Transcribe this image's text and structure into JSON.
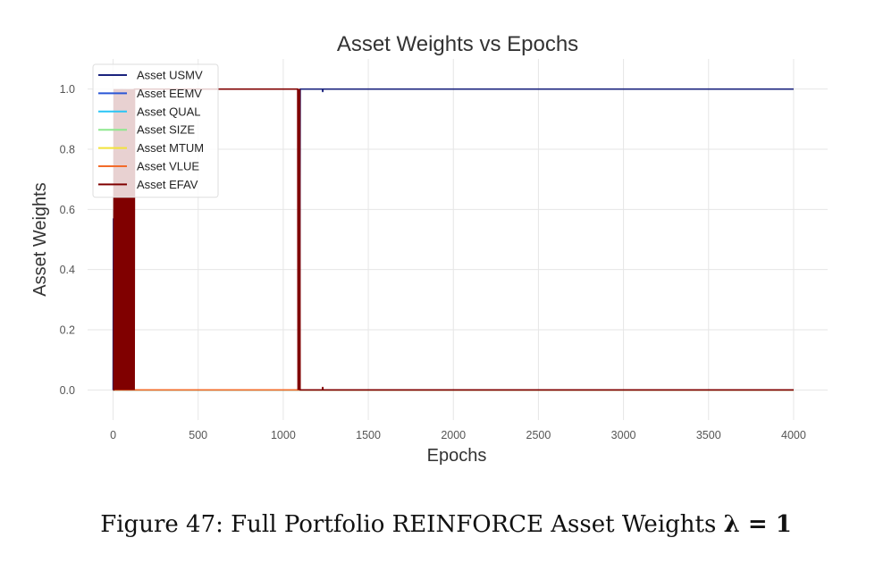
{
  "caption": {
    "prefix": "Figure 47:",
    "text": "Full Portfolio REINFORCE Asset Weights",
    "equation": "λ = 1"
  },
  "chart_data": {
    "type": "line",
    "title": "Asset Weights vs Epochs",
    "xlabel": "Epochs",
    "ylabel": "Asset Weights",
    "xlim": [
      -150,
      4200
    ],
    "ylim": [
      -0.1,
      1.1
    ],
    "x_ticks": [
      0,
      500,
      1000,
      1500,
      2000,
      2500,
      3000,
      3500,
      4000
    ],
    "x_tick_labels": [
      "0",
      "500",
      "1000",
      "1500",
      "2000",
      "2500",
      "3000",
      "3500",
      "4000"
    ],
    "y_ticks": [
      0.0,
      0.2,
      0.4,
      0.6,
      0.8,
      1.0
    ],
    "y_tick_labels": [
      "0.0",
      "0.2",
      "0.4",
      "0.6",
      "0.8",
      "1.0"
    ],
    "grid": true,
    "legend_position": "top-left",
    "series": [
      {
        "name": "Asset USMV",
        "color": "#1a237e",
        "x": [
          0,
          2,
          4,
          6,
          8,
          10,
          12,
          14,
          20,
          26,
          30,
          40,
          60,
          80,
          100,
          120,
          1085,
          1090,
          1093,
          1096,
          1100,
          1230,
          1232,
          1234,
          1240,
          4000
        ],
        "y": [
          0.0,
          0.57,
          0.27,
          0.6,
          0.15,
          0.0,
          0.3,
          0.0,
          0.0,
          0.0,
          0.0,
          0.0,
          0.0,
          0.0,
          0.0,
          0.0,
          0.0,
          0.0,
          1.0,
          0.0,
          1.0,
          1.0,
          0.99,
          1.0,
          1.0,
          1.0
        ]
      },
      {
        "name": "Asset EEMV",
        "color": "#2a56d6",
        "x": [
          0,
          38,
          40,
          42,
          44,
          46,
          48,
          50,
          52,
          54,
          56,
          58,
          60,
          62,
          64,
          66,
          70,
          4000
        ],
        "y": [
          0.0,
          0.0,
          0.6,
          0.1,
          1.0,
          0.3,
          0.9,
          0.02,
          1.0,
          0.4,
          1.0,
          0.6,
          0.0,
          0.0,
          0.0,
          0.0,
          0.0,
          0.0
        ]
      },
      {
        "name": "Asset QUAL",
        "color": "#29c5f6",
        "x": [
          0,
          62,
          64,
          66,
          68,
          70,
          72,
          74,
          76,
          78,
          80,
          82,
          84,
          4000
        ],
        "y": [
          0.0,
          0.0,
          0.65,
          0.35,
          0.8,
          0.45,
          1.0,
          0.3,
          0.7,
          0.0,
          0.0,
          0.0,
          0.0,
          0.0
        ]
      },
      {
        "name": "Asset SIZE",
        "color": "#8ee88e",
        "x": [
          0,
          20,
          22,
          24,
          26,
          28,
          30,
          32,
          34,
          36,
          40,
          44,
          46,
          48,
          50,
          52,
          54,
          56,
          58,
          60,
          64,
          70,
          72,
          74,
          76,
          78,
          80,
          82,
          84,
          86,
          88,
          90,
          92,
          96,
          4000
        ],
        "y": [
          0.0,
          0.0,
          0.12,
          0.0,
          0.2,
          0.05,
          0.0,
          0.1,
          0.0,
          0.0,
          0.0,
          0.0,
          0.05,
          0.0,
          0.04,
          0.0,
          0.0,
          0.0,
          0.0,
          0.0,
          0.0,
          0.0,
          0.22,
          0.0,
          0.35,
          0.28,
          0.33,
          0.3,
          0.31,
          0.0,
          0.29,
          0.32,
          0.0,
          0.0,
          0.0
        ]
      },
      {
        "name": "Asset MTUM",
        "color": "#f2e33a",
        "x": [
          0,
          30,
          32,
          34,
          36,
          38,
          40,
          4000
        ],
        "y": [
          0.0,
          0.0,
          0.08,
          0.0,
          0.05,
          0.0,
          0.0,
          0.0
        ]
      },
      {
        "name": "Asset VLUE",
        "color": "#f26b2a",
        "x": [
          0,
          4,
          6,
          8,
          10,
          12,
          14,
          16,
          4000
        ],
        "y": [
          0.0,
          0.0,
          0.14,
          0.0,
          0.1,
          0.0,
          0.0,
          0.0,
          0.0
        ]
      },
      {
        "name": "Asset EFAV",
        "color": "#800000",
        "x": [
          0,
          4,
          6,
          8,
          10,
          12,
          14,
          16,
          18,
          20,
          22,
          24,
          26,
          28,
          30,
          32,
          34,
          36,
          38,
          40,
          42,
          44,
          46,
          48,
          50,
          52,
          54,
          56,
          58,
          60,
          62,
          64,
          66,
          68,
          70,
          72,
          74,
          76,
          78,
          80,
          82,
          84,
          86,
          88,
          90,
          92,
          94,
          96,
          98,
          100,
          102,
          104,
          106,
          108,
          110,
          112,
          114,
          116,
          118,
          120,
          122,
          124,
          126,
          128,
          1085,
          1087,
          1089,
          1091,
          1093,
          1095,
          1097,
          1099,
          1101,
          1230,
          1232,
          1234,
          4000
        ],
        "y": [
          0.0,
          0.0,
          1.0,
          0.0,
          1.0,
          0.0,
          1.0,
          0.0,
          1.0,
          0.0,
          1.0,
          0.0,
          1.0,
          0.0,
          1.0,
          0.0,
          1.0,
          0.0,
          1.0,
          0.0,
          1.0,
          0.0,
          1.0,
          0.0,
          1.0,
          0.0,
          1.0,
          0.0,
          1.0,
          0.0,
          1.0,
          0.0,
          1.0,
          0.0,
          1.0,
          0.0,
          1.0,
          0.0,
          1.0,
          0.0,
          1.0,
          0.0,
          1.0,
          0.0,
          1.0,
          0.0,
          1.0,
          0.0,
          1.0,
          0.0,
          1.0,
          0.0,
          1.0,
          0.0,
          1.0,
          0.0,
          1.0,
          0.0,
          1.0,
          0.0,
          1.0,
          0.0,
          1.0,
          1.0,
          1.0,
          0.0,
          1.0,
          0.0,
          1.0,
          0.0,
          1.0,
          0.0,
          0.0,
          0.0,
          0.01,
          0.0,
          0.0
        ]
      }
    ]
  }
}
